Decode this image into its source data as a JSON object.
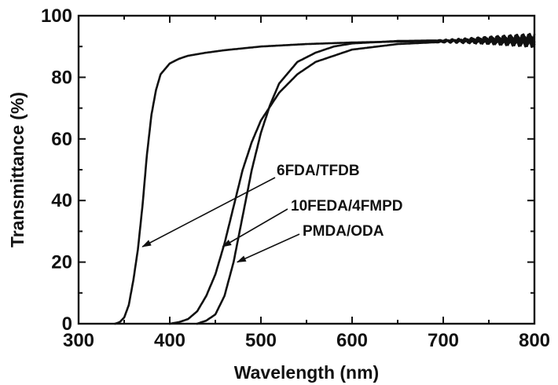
{
  "chart_data": {
    "type": "line",
    "xlabel": "Wavelength (nm)",
    "ylabel": "Transmittance (%)",
    "xlim": [
      300,
      800
    ],
    "ylim": [
      0,
      100
    ],
    "xticks": [
      300,
      400,
      500,
      600,
      700,
      800
    ],
    "yticks": [
      0,
      20,
      40,
      60,
      80,
      100
    ],
    "grid": false,
    "legend": "none",
    "series": [
      {
        "name": "6FDA/TFDB",
        "x": [
          340,
          345,
          350,
          355,
          360,
          365,
          370,
          375,
          380,
          385,
          390,
          400,
          410,
          420,
          440,
          460,
          500,
          550,
          600,
          650,
          700,
          750,
          800
        ],
        "y": [
          0,
          0.5,
          2,
          6,
          14,
          24,
          38,
          55,
          68,
          76,
          81,
          84.5,
          86,
          87,
          88,
          88.8,
          90,
          90.8,
          91.3,
          91.6,
          91.8,
          92,
          92
        ]
      },
      {
        "name": "10FEDA/4FMPD",
        "x": [
          400,
          410,
          420,
          430,
          440,
          450,
          460,
          470,
          480,
          490,
          500,
          520,
          540,
          560,
          600,
          650,
          700,
          750,
          800
        ],
        "y": [
          0,
          0.5,
          1.5,
          4,
          9,
          16,
          26,
          38,
          50,
          59,
          66,
          75,
          81,
          85,
          89,
          90.8,
          91.5,
          92,
          92
        ]
      },
      {
        "name": "PMDA/ODA",
        "x": [
          430,
          440,
          450,
          460,
          470,
          480,
          490,
          500,
          510,
          520,
          540,
          560,
          580,
          600,
          650,
          700,
          750,
          800
        ],
        "y": [
          0,
          1,
          3,
          9,
          20,
          35,
          50,
          62,
          71,
          78,
          85,
          88,
          90,
          91,
          91.8,
          92,
          92,
          92
        ]
      }
    ],
    "annotations": [
      {
        "text": "6FDA/TFDB",
        "target": [
          370,
          25
        ]
      },
      {
        "text": "10FEDA/4FMPD",
        "target": [
          458,
          25
        ]
      },
      {
        "text": "PMDA/ODA",
        "target": [
          474,
          20
        ]
      }
    ]
  }
}
